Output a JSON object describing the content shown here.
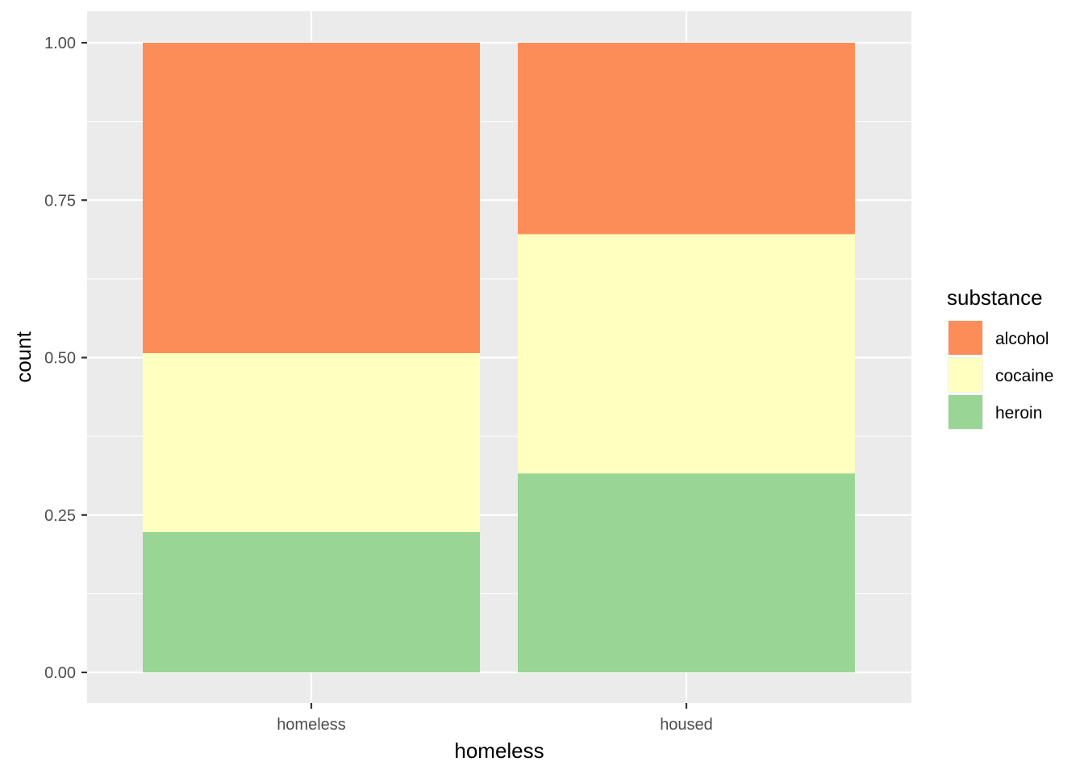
{
  "chart_data": {
    "type": "bar",
    "stacked": true,
    "position": "fill",
    "xlabel": "homeless",
    "ylabel": "count",
    "categories": [
      "homeless",
      "housed"
    ],
    "ylim": [
      0,
      1
    ],
    "yticks": [
      "0.00",
      "0.25",
      "0.50",
      "0.75",
      "1.00"
    ],
    "ytick_values": [
      0,
      0.25,
      0.5,
      0.75,
      1.0
    ],
    "grid": true,
    "legend": {
      "title": "substance",
      "position": "right"
    },
    "series": [
      {
        "name": "heroin",
        "color": "#99d594",
        "values": [
          0.223,
          0.316
        ]
      },
      {
        "name": "cocaine",
        "color": "#ffffbf",
        "values": [
          0.284,
          0.38
        ]
      },
      {
        "name": "alcohol",
        "color": "#fc8d59",
        "values": [
          0.493,
          0.304
        ]
      }
    ],
    "legend_order": [
      "alcohol",
      "cocaine",
      "heroin"
    ],
    "panel_background": "#ebebeb",
    "grid_color": "#ffffff"
  }
}
